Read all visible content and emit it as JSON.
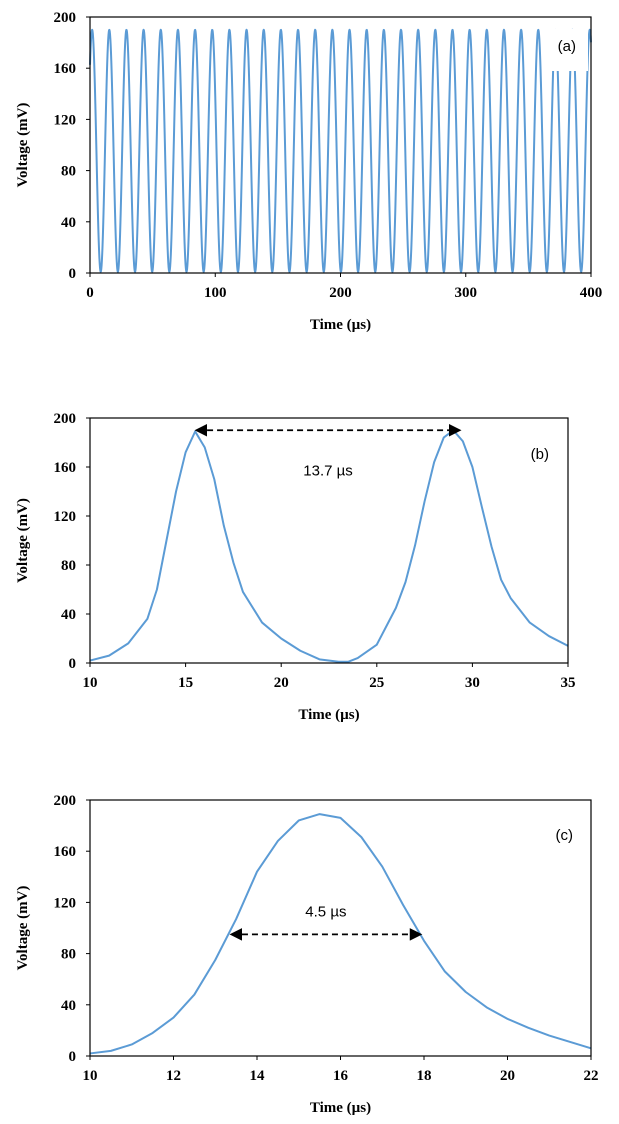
{
  "chart_data": [
    {
      "panel": "(a)",
      "type": "line",
      "xlabel": "Time (µs)",
      "ylabel": "Voltage (mV)",
      "xlim": [
        0,
        400
      ],
      "ylim": [
        0,
        200
      ],
      "xticks": [
        0,
        100,
        200,
        300,
        400
      ],
      "yticks": [
        0,
        40,
        80,
        120,
        160,
        200
      ],
      "grid": false,
      "waveform": {
        "period_us": 13.7,
        "peak_mv": 190,
        "min_mv": 1,
        "first_peak_us": 1.7
      },
      "annotations": []
    },
    {
      "panel": "(b)",
      "type": "line",
      "xlabel": "Time (µs)",
      "ylabel": "Voltage (mV)",
      "xlim": [
        10,
        35
      ],
      "ylim": [
        0,
        200
      ],
      "xticks": [
        10,
        15,
        20,
        25,
        30,
        35
      ],
      "yticks": [
        0,
        40,
        80,
        120,
        160,
        200
      ],
      "grid": false,
      "series": [
        {
          "x": [
            10,
            11,
            12,
            13,
            13.5,
            14,
            14.5,
            15,
            15.5,
            16,
            16.5,
            17,
            17.5,
            18,
            19,
            20,
            21,
            22,
            23,
            23.5,
            24,
            25,
            26,
            26.5,
            27,
            27.5,
            28,
            28.5,
            29,
            29.5,
            30,
            30.5,
            31,
            31.5,
            32,
            33,
            34,
            35
          ],
          "y": [
            2,
            6,
            16,
            36,
            60,
            100,
            140,
            172,
            189,
            176,
            150,
            112,
            82,
            58,
            33,
            20,
            10,
            3,
            1,
            1,
            4,
            15,
            45,
            66,
            96,
            132,
            164,
            184,
            190,
            181,
            160,
            127,
            95,
            68,
            53,
            33,
            22,
            14
          ]
        }
      ],
      "annotations": [
        {
          "text": "13.7 µs",
          "from_x": 15.6,
          "to_x": 29.3,
          "y": 190
        }
      ]
    },
    {
      "panel": "(c)",
      "type": "line",
      "xlabel": "Time (µs)",
      "ylabel": "Voltage (mV)",
      "xlim": [
        10,
        22
      ],
      "ylim": [
        0,
        200
      ],
      "xticks": [
        10,
        12,
        14,
        16,
        18,
        20,
        22
      ],
      "yticks": [
        0,
        40,
        80,
        120,
        160,
        200
      ],
      "grid": false,
      "series": [
        {
          "x": [
            10,
            10.5,
            11,
            11.5,
            12,
            12.5,
            13,
            13.5,
            14,
            14.5,
            15,
            15.5,
            16,
            16.5,
            17,
            17.5,
            18,
            18.5,
            19,
            19.5,
            20,
            20.5,
            21,
            21.5,
            22
          ],
          "y": [
            2,
            4,
            9,
            18,
            30,
            48,
            75,
            107,
            144,
            168,
            184,
            189,
            186,
            171,
            148,
            118,
            90,
            66,
            50,
            38,
            29,
            22,
            16,
            11,
            6
          ]
        }
      ],
      "annotations": [
        {
          "text": "4.5 µs",
          "from_x": 13.4,
          "to_x": 17.9,
          "y": 95
        }
      ]
    }
  ]
}
